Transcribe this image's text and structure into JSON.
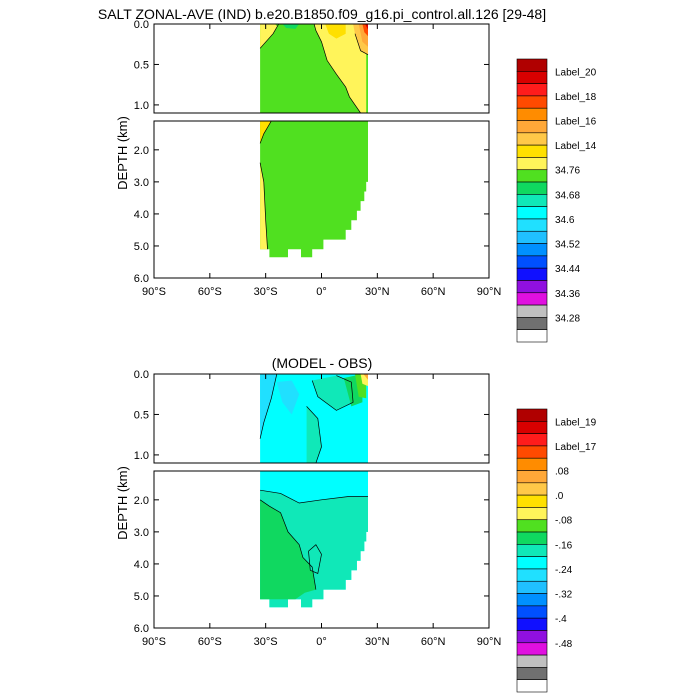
{
  "figure": {
    "title": "SALT ZONAL-AVE (IND) b.e20.B1850.f09_g16.pi_control.all.126 [29-48]"
  },
  "chart_data": [
    {
      "type": "heatmap",
      "title": "SALT ZONAL-AVE (IND) b.e20.B1850.f09_g16.pi_control.all.126 [29-48]",
      "xlabel": "",
      "ylabel": "DEPTH (km)",
      "xlim": [
        -90,
        90
      ],
      "ylim": [
        6.0,
        0.0
      ],
      "y_axis": "inverted, upper panel 0.0–1.1 km expanded, lower panel 1.1–6.0 km",
      "x_ticks": [
        "90°S",
        "60°S",
        "30°S",
        "0°",
        "30°N",
        "60°N",
        "90°N"
      ],
      "y_ticks_upper": [
        "0.0",
        "0.5",
        "1.0"
      ],
      "y_ticks_lower": [
        "2.0",
        "3.0",
        "4.0",
        "5.0",
        "6.0"
      ],
      "ocean_extent_lat": [
        -33,
        25
      ],
      "colorbar_labels": [
        "Label_20",
        "Label_18",
        "Label_16",
        "Label_14",
        "34.76",
        "34.68",
        "34.6",
        "34.52",
        "34.44",
        "34.36",
        "34.28"
      ],
      "colorbar_colors": [
        "#b00000",
        "#d80000",
        "#ff1c1c",
        "#ff4a00",
        "#ff8c00",
        "#ffa838",
        "#ffc848",
        "#ffe000",
        "#fff45a",
        "#50e020",
        "#10d860",
        "#10e8b8",
        "#00ffff",
        "#20e0ff",
        "#20c0ff",
        "#0090ff",
        "#0050ff",
        "#1010ff",
        "#9010e0",
        "#e010e0",
        "#c0c0c0",
        "#707070",
        "#ffffff"
      ],
      "fields": {
        "dominant_upper": "34.68–34.76 (green) with 34.76+ (yellow) near surface; orange/red values near 25°N surface",
        "dominant_lower": "34.68–34.76 (green) throughout; yellow strip at southern edge below 3 km"
      }
    },
    {
      "type": "heatmap",
      "title": "(MODEL - OBS)",
      "xlabel": "",
      "ylabel": "DEPTH (km)",
      "xlim": [
        -90,
        90
      ],
      "ylim": [
        6.0,
        0.0
      ],
      "y_axis": "inverted, upper panel 0.0–1.1 km expanded, lower panel 1.1–6.0 km",
      "x_ticks": [
        "90°S",
        "60°S",
        "30°S",
        "0°",
        "30°N",
        "60°N",
        "90°N"
      ],
      "y_ticks_upper": [
        "0.0",
        "0.5",
        "1.0"
      ],
      "y_ticks_lower": [
        "2.0",
        "3.0",
        "4.0",
        "5.0",
        "6.0"
      ],
      "ocean_extent_lat": [
        -33,
        25
      ],
      "colorbar_labels": [
        "Label_19",
        "Label_17",
        ".08",
        ".0",
        "-.08",
        "-.16",
        "-.24",
        "-.32",
        "-.4",
        "-.48"
      ],
      "colorbar_colors": [
        "#b00000",
        "#d80000",
        "#ff1c1c",
        "#ff4a00",
        "#ff8c00",
        "#ffa838",
        "#ffc848",
        "#ffe000",
        "#fff45a",
        "#50e020",
        "#10d860",
        "#10e8b8",
        "#00ffff",
        "#20e0ff",
        "#20c0ff",
        "#0090ff",
        "#0050ff",
        "#1010ff",
        "#9010e0",
        "#e010e0",
        "#c0c0c0",
        "#707070",
        "#ffffff"
      ],
      "fields": {
        "dominant_upper": "-0.16 to -0.08 (cyan) with -0.08 to 0 (teal) bands; positive values near 25°N surface",
        "dominant_lower": "-0.16 to -0.08 (cyan) above ~2.5 km, -0.08 to 0 (green/teal) below"
      }
    }
  ]
}
